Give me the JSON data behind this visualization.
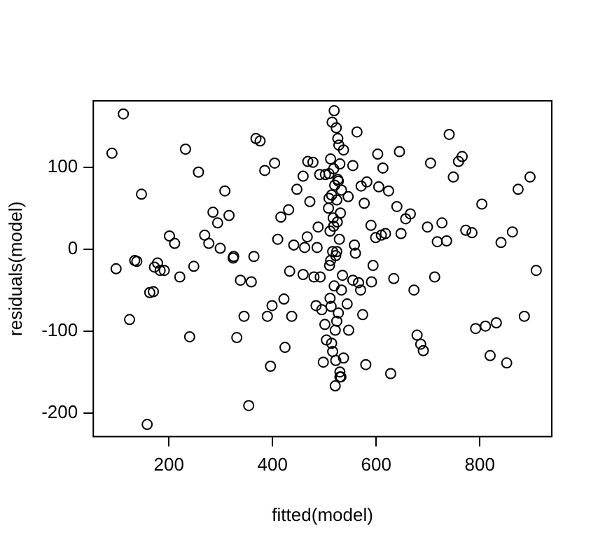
{
  "chart_data": {
    "type": "scatter",
    "xlabel": "fitted(model)",
    "ylabel": "residuals(model)",
    "xlim": [
      54,
      939
    ],
    "ylim": [
      -229,
      181
    ],
    "xticks": [
      200,
      400,
      600,
      800
    ],
    "yticks": [
      -200,
      -100,
      0,
      100
    ],
    "grid": false,
    "legend": false,
    "marker": "circle",
    "series": [
      {
        "color": "#000000",
        "x": [
          90,
          112,
          98,
          124,
          138,
          147,
          158,
          172,
          183,
          163,
          232,
          257,
          368,
          376,
          385,
          404,
          308,
          285,
          294,
          316,
          201,
          211,
          269,
          277,
          299,
          325,
          364,
          410,
          416,
          431,
          472,
          447,
          459,
          468,
          478,
          491,
          502,
          441,
          462,
          467,
          488,
          486,
          134,
          178,
          248,
          191,
          170,
          221,
          240,
          338,
          359,
          324,
          345,
          331,
          354,
          396,
          424,
          390,
          399,
          422,
          437,
          433,
          459,
          480,
          492,
          484,
          495,
          501,
          504,
          514,
          498,
          521,
          530,
          522,
          524,
          511,
          563,
          741,
          537,
          603,
          645,
          766,
          759,
          705,
          555,
          613,
          749,
          897,
          874,
          571,
          582,
          605,
          624,
          546,
          577,
          640,
          804,
          657,
          666,
          727,
          699,
          590,
          618,
          610,
          599,
          648,
          773,
          785,
          718,
          736,
          841,
          863,
          558,
          560,
          594,
          909,
          634,
          673,
          713,
          591,
          566,
          570,
          555,
          574,
          544,
          547,
          679,
          686,
          691,
          792,
          811,
          832,
          886,
          820,
          852,
          580,
          628,
          537,
          532,
          519,
          523,
          528,
          515,
          526,
          512,
          530,
          518,
          509,
          527,
          520,
          533,
          514,
          524,
          508,
          531,
          517,
          525,
          511,
          529,
          516,
          522,
          510,
          535,
          519,
          513,
          527,
          521,
          516,
          530,
          512,
          524,
          518,
          509,
          526,
          533
        ],
        "values": [
          117,
          165,
          -24,
          -86,
          -15,
          67,
          -214,
          -22,
          -26,
          -53,
          122,
          94,
          135,
          132,
          96,
          105,
          71,
          45,
          32,
          41,
          16,
          7,
          17,
          7,
          1,
          -9,
          -9,
          12,
          39,
          48,
          58,
          73,
          89,
          107,
          106,
          91,
          91,
          5,
          2,
          15,
          27,
          2,
          -14,
          -17,
          -21,
          -26,
          -52,
          -34,
          -107,
          -38,
          -40,
          -11,
          -82,
          -108,
          -191,
          -143,
          -120,
          -82,
          -69,
          -61,
          -82,
          -27,
          -31,
          -34,
          -34,
          -69,
          -74,
          -92,
          -111,
          -115,
          -138,
          -167,
          -156,
          -136,
          -88,
          -60,
          143,
          140,
          121,
          116,
          119,
          113,
          107,
          105,
          102,
          99,
          88,
          88,
          73,
          77,
          82,
          76,
          71,
          64,
          56,
          52,
          55,
          37,
          43,
          32,
          27,
          29,
          19,
          17,
          14,
          19,
          23,
          20,
          9,
          10,
          8,
          21,
          5,
          -5,
          -20,
          -26,
          -36,
          -50,
          -34,
          -40,
          -41,
          -50,
          -38,
          -80,
          -67,
          -99,
          -105,
          -116,
          -124,
          -97,
          -94,
          -90,
          -82,
          -130,
          -139,
          -141,
          -152,
          -133,
          -156,
          169,
          148,
          127,
          155,
          135,
          110,
          104,
          98,
          92,
          83,
          78,
          72,
          66,
          60,
          50,
          44,
          38,
          33,
          22,
          12,
          -3,
          -8,
          -20,
          -32,
          -45,
          -70,
          -78,
          -99,
          -125,
          -150,
          -14,
          -3,
          28,
          62,
          85,
          -50
        ]
      }
    ]
  }
}
